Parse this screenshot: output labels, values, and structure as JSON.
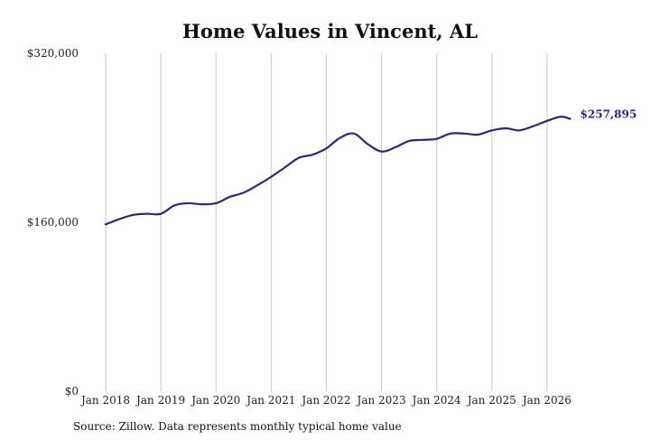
{
  "chart_data": {
    "type": "line",
    "title": "Home Values in Vincent, AL",
    "source": "Source: Zillow. Data represents monthly typical home value",
    "xlabel": "",
    "ylabel": "",
    "x_ticks": [
      "Jan 2018",
      "Jan 2019",
      "Jan 2020",
      "Jan 2021",
      "Jan 2022",
      "Jan 2023",
      "Jan 2024",
      "Jan 2025",
      "Jan 2026"
    ],
    "y_ticks": [
      "$0",
      "$160,000",
      "$320,000"
    ],
    "xlim": [
      2018.0,
      2027.0
    ],
    "ylim": [
      0,
      320000
    ],
    "grid": "vertical",
    "line_color": "#2b2a7a",
    "end_label": "$257,895",
    "series": [
      {
        "x": [
          2018.0,
          2018.25,
          2018.5,
          2018.75,
          2019.0,
          2019.25,
          2019.5,
          2019.75,
          2020.0,
          2020.25,
          2020.5,
          2020.75,
          2021.0,
          2021.25,
          2021.5,
          2021.75,
          2022.0,
          2022.25,
          2022.5,
          2022.75,
          2023.0,
          2023.25,
          2023.5,
          2023.75,
          2024.0,
          2024.25,
          2024.5,
          2024.75,
          2025.0,
          2025.25,
          2025.5,
          2025.75,
          2026.0,
          2026.25,
          2026.42
        ],
        "y": [
          158000,
          163000,
          167000,
          168000,
          168000,
          176000,
          178000,
          177000,
          178000,
          184000,
          188000,
          195000,
          203000,
          212000,
          221000,
          224000,
          230000,
          240000,
          244000,
          234000,
          227000,
          231000,
          237000,
          238000,
          239000,
          244000,
          244000,
          243000,
          247000,
          249000,
          247000,
          251000,
          256000,
          260000,
          257895
        ]
      }
    ]
  }
}
